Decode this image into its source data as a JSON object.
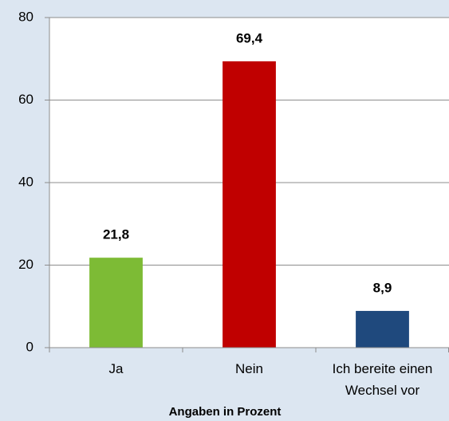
{
  "chart_data": {
    "type": "bar",
    "x_label": "Angaben in Prozent",
    "categories": [
      "Ja",
      "Nein",
      "Ich bereite einen Wechsel vor"
    ],
    "values": [
      21.8,
      69.4,
      8.9
    ],
    "value_labels": [
      "21,8",
      "69,4",
      "8,9"
    ],
    "colors": [
      "#7dbb35",
      "#c00000",
      "#1f497d"
    ],
    "ylim": [
      0,
      80
    ],
    "yticks": [
      0,
      20,
      40,
      60,
      80
    ],
    "grid": true
  }
}
